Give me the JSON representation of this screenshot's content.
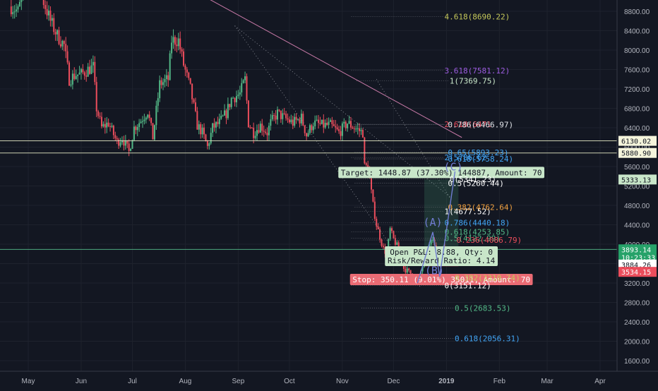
{
  "colors": {
    "background": "#131722",
    "grid": "#1e222d",
    "up_candle": "#53b987",
    "down_candle": "#eb4d5c",
    "axis_text": "#b2b5be",
    "trendline": "#c97aa8",
    "fib_gray": "#9598a1"
  },
  "chart_data": {
    "type": "candlestick",
    "symbol": "BTCUSD",
    "y_axis": {
      "ticks": [
        1600,
        2000,
        2400,
        2800,
        3200,
        3600,
        4000,
        4400,
        4800,
        5200,
        5600,
        6000,
        6400,
        6800,
        7200,
        7600,
        8000,
        8400,
        8800
      ],
      "tick_labels": [
        "1600.00",
        "2000.00",
        "2400.00",
        "2800.00",
        "3200.00",
        "3600.00",
        "4000.00",
        "4400.00",
        "4800.00",
        "5200.00",
        "5600.00",
        "6000.00",
        "6400.00",
        "6800.00",
        "7200.00",
        "7600.00",
        "8000.00",
        "8400.00",
        "8800.00"
      ]
    },
    "x_axis": {
      "labels": [
        {
          "text": "May",
          "date": "2018-05-01"
        },
        {
          "text": "Jun",
          "date": "2018-06-01"
        },
        {
          "text": "Jul",
          "date": "2018-07-01"
        },
        {
          "text": "Aug",
          "date": "2018-08-01"
        },
        {
          "text": "Sep",
          "date": "2018-09-01"
        },
        {
          "text": "Oct",
          "date": "2018-10-01"
        },
        {
          "text": "Nov",
          "date": "2018-11-01"
        },
        {
          "text": "Dec",
          "date": "2018-12-01"
        },
        {
          "text": "2019",
          "date": "2019-01-01"
        },
        {
          "text": "Feb",
          "date": "2019-02-01"
        },
        {
          "text": "Mar",
          "date": "2019-03-01"
        },
        {
          "text": "Apr",
          "date": "2019-04-01"
        }
      ]
    },
    "price_path": [
      [
        "2018-04-21",
        8900
      ],
      [
        "2018-04-25",
        8800
      ],
      [
        "2018-04-29",
        9300
      ],
      [
        "2018-05-05",
        9700
      ],
      [
        "2018-05-10",
        9000
      ],
      [
        "2018-05-14",
        8600
      ],
      [
        "2018-05-18",
        8300
      ],
      [
        "2018-05-22",
        8100
      ],
      [
        "2018-05-25",
        7400
      ],
      [
        "2018-05-29",
        7500
      ],
      [
        "2018-06-01",
        7500
      ],
      [
        "2018-06-05",
        7600
      ],
      [
        "2018-06-08",
        7650
      ],
      [
        "2018-06-10",
        6800
      ],
      [
        "2018-06-13",
        6400
      ],
      [
        "2018-06-17",
        6500
      ],
      [
        "2018-06-22",
        6100
      ],
      [
        "2018-06-25",
        6200
      ],
      [
        "2018-06-29",
        5900
      ],
      [
        "2018-07-02",
        6400
      ],
      [
        "2018-07-06",
        6550
      ],
      [
        "2018-07-10",
        6750
      ],
      [
        "2018-07-13",
        6200
      ],
      [
        "2018-07-17",
        7300
      ],
      [
        "2018-07-22",
        7400
      ],
      [
        "2018-07-24",
        8200
      ],
      [
        "2018-07-28",
        8200
      ],
      [
        "2018-07-31",
        7700
      ],
      [
        "2018-08-04",
        7200
      ],
      [
        "2018-08-08",
        6450
      ],
      [
        "2018-08-11",
        6300
      ],
      [
        "2018-08-14",
        6000
      ],
      [
        "2018-08-17",
        6400
      ],
      [
        "2018-08-21",
        6500
      ],
      [
        "2018-08-25",
        6700
      ],
      [
        "2018-08-28",
        7000
      ],
      [
        "2018-09-02",
        7100
      ],
      [
        "2018-09-05",
        7400
      ],
      [
        "2018-09-07",
        6500
      ],
      [
        "2018-09-10",
        6300
      ],
      [
        "2018-09-14",
        6450
      ],
      [
        "2018-09-18",
        6300
      ],
      [
        "2018-09-20",
        6500
      ],
      [
        "2018-09-24",
        6700
      ],
      [
        "2018-09-28",
        6600
      ],
      [
        "2018-10-03",
        6500
      ],
      [
        "2018-10-08",
        6600
      ],
      [
        "2018-10-11",
        6250
      ],
      [
        "2018-10-15",
        6500
      ],
      [
        "2018-10-20",
        6450
      ],
      [
        "2018-10-25",
        6450
      ],
      [
        "2018-10-30",
        6300
      ],
      [
        "2018-11-04",
        6500
      ],
      [
        "2018-11-08",
        6400
      ],
      [
        "2018-11-13",
        6300
      ],
      [
        "2018-11-14",
        5600
      ],
      [
        "2018-11-16",
        5600
      ],
      [
        "2018-11-19",
        4800
      ],
      [
        "2018-11-21",
        4400
      ],
      [
        "2018-11-25",
        3900
      ],
      [
        "2018-11-27",
        3800
      ],
      [
        "2018-11-29",
        4300
      ],
      [
        "2018-12-01",
        4100
      ],
      [
        "2018-12-04",
        3900
      ],
      [
        "2018-12-07",
        3500
      ],
      [
        "2018-12-11",
        3400
      ],
      [
        "2018-12-15",
        3200
      ],
      [
        "2018-12-18",
        3550
      ],
      [
        "2018-12-21",
        3900
      ],
      [
        "2018-12-24",
        4100
      ],
      [
        "2018-12-27",
        3650
      ],
      [
        "2018-12-30",
        3900
      ],
      [
        "2019-01-03",
        3850
      ]
    ],
    "horizontal_levels": [
      {
        "label": "6130.02",
        "value": 6130.02,
        "color": "#e0e3c0",
        "bg": "#f5f5dc",
        "fg": "#131722"
      },
      {
        "label": "5880.90",
        "value": 5880.9,
        "color": "#e0e3c0",
        "bg": "#f5f5dc",
        "fg": "#131722"
      },
      {
        "label": "3893.14",
        "value": 3893.14,
        "color": "#53b987",
        "bg": "#26a269",
        "fg": "#ffffff"
      }
    ],
    "price_tags": [
      {
        "label": "5333.13",
        "value": 5333.13,
        "bg": "#c8e6c9",
        "fg": "#131722"
      },
      {
        "label": "3893.14",
        "value": 3893.14,
        "bg": "#26a269",
        "fg": "#ffffff"
      },
      {
        "label": "10:23:33",
        "value": 3730,
        "bg": "#26a269",
        "fg": "#ffffff"
      },
      {
        "label": "3884.26",
        "value": 3580,
        "bg": "#ffffff",
        "fg": "#131722"
      },
      {
        "label": "3534.15",
        "value": 3430,
        "bg": "#eb4d5c",
        "fg": "#ffffff"
      }
    ],
    "fib_labels": [
      {
        "text": "4.618(8690.22)",
        "value": 8690.22,
        "date": "2018-12-30",
        "color": "#c5c85a"
      },
      {
        "text": "3.618(7581.12)",
        "value": 7581.12,
        "date": "2018-12-30",
        "color": "#9c5ce0"
      },
      {
        "text": "1(7369.75)",
        "value": 7369.75,
        "date": "2019-01-02",
        "color": "#c8e6c9"
      },
      {
        "text": "2.618(6471",
        "value": 6471,
        "date": "2018-12-30",
        "color": "#eb4d5c"
      },
      {
        "text": "0.786(6466.97)",
        "value": 6466.97,
        "date": "2019-01-01",
        "color": "#e0e3e8"
      },
      {
        "text": "0.65(5893.23)",
        "value": 5893.23,
        "date": "2019-01-01",
        "color": "#42a5f5"
      },
      {
        "text": "0.618(5758.24)",
        "value": 5758.24,
        "date": "2019-01-01",
        "color": "#42a5f5"
      },
      {
        "text": "2(5786.62",
        "value": 5786.62,
        "date": "2018-12-30",
        "color": "#42a5f5"
      },
      {
        "text": "0(5341.23)",
        "value": 5341.23,
        "date": "2019-01-02",
        "color": "#ffffff"
      },
      {
        "text": "0.5(5260.44)",
        "value": 5260.44,
        "date": "2019-01-01",
        "color": "#ffffff"
      },
      {
        "text": "1(4677.52)",
        "value": 4677.52,
        "date": "2018-12-30",
        "color": "#ffffff"
      },
      {
        "text": "0.382(4762.64)",
        "value": 4762.64,
        "date": "2019-01-01",
        "color": "#f0a040"
      },
      {
        "text": "0.786(4440.18)",
        "value": 4440.18,
        "date": "2018-12-30",
        "color": "#42a5f5"
      },
      {
        "text": "0.618(4253.85)",
        "value": 4253.85,
        "date": "2018-12-30",
        "color": "#53b987"
      },
      {
        "text": "0.5(4122.99)",
        "value": 4122.99,
        "date": "2018-12-30",
        "color": "#53b987"
      },
      {
        "text": "0.236(4086.79)",
        "value": 4086.79,
        "date": "2019-01-06",
        "color": "#eb4d5c"
      },
      {
        "text": "0.382(3310.74)",
        "value": 3310.74,
        "date": "2019-01-05",
        "color": "#c5c85a"
      },
      {
        "text": "0(3151.12)",
        "value": 3151.12,
        "date": "2018-12-30",
        "color": "#ffffff"
      },
      {
        "text": "0.5(2683.53)",
        "value": 2683.53,
        "date": "2019-01-05",
        "color": "#53b987"
      },
      {
        "text": "0.618(2056.31)",
        "value": 2056.31,
        "date": "2019-01-05",
        "color": "#42a5f5"
      }
    ],
    "wave_labels": [
      {
        "text": "(A)",
        "value": 4380,
        "date": "2018-12-24",
        "color": "#6f7bd1"
      },
      {
        "text": "(B)",
        "value": 3380,
        "date": "2018-12-25",
        "color": "#6f7bd1"
      },
      {
        "text": "(C)",
        "value": 5520,
        "date": "2019-01-05",
        "color": "#6f7bd1"
      }
    ],
    "wave_path": [
      [
        "2018-12-15",
        3200
      ],
      [
        "2018-12-24",
        4250
      ],
      [
        "2018-12-28",
        3330
      ],
      [
        "2019-01-06",
        5500
      ]
    ],
    "trendline": {
      "from": [
        "2018-08-15",
        9050
      ],
      "to": [
        "2019-01-10",
        6200
      ]
    },
    "dotted_diagonals": [
      {
        "from": [
          "2018-08-30",
          8500
        ],
        "to": [
          "2019-01-04",
          4950
        ]
      },
      {
        "from": [
          "2018-08-30",
          8500
        ],
        "to": [
          "2018-12-17",
          3100
        ]
      },
      {
        "from": [
          "2018-11-21",
          7400
        ],
        "to": [
          "2019-01-04",
          4900
        ]
      }
    ],
    "position": {
      "target_label": "Target: 1448.87 (37.30%) 144887, Amount: 70",
      "target_value": 5333.13,
      "pnl_line1": "Open P&L: 8.88, Qty: 0",
      "pnl_line2": "Risk/Reward Ratio: 4.14",
      "entry_value": 3884.26,
      "stop_label": "Stop: 350.11 (9.01%) 35011, Amount: 70",
      "stop_value": 3534.15,
      "start_date": "2018-12-19",
      "end_date": "2019-01-08"
    }
  }
}
